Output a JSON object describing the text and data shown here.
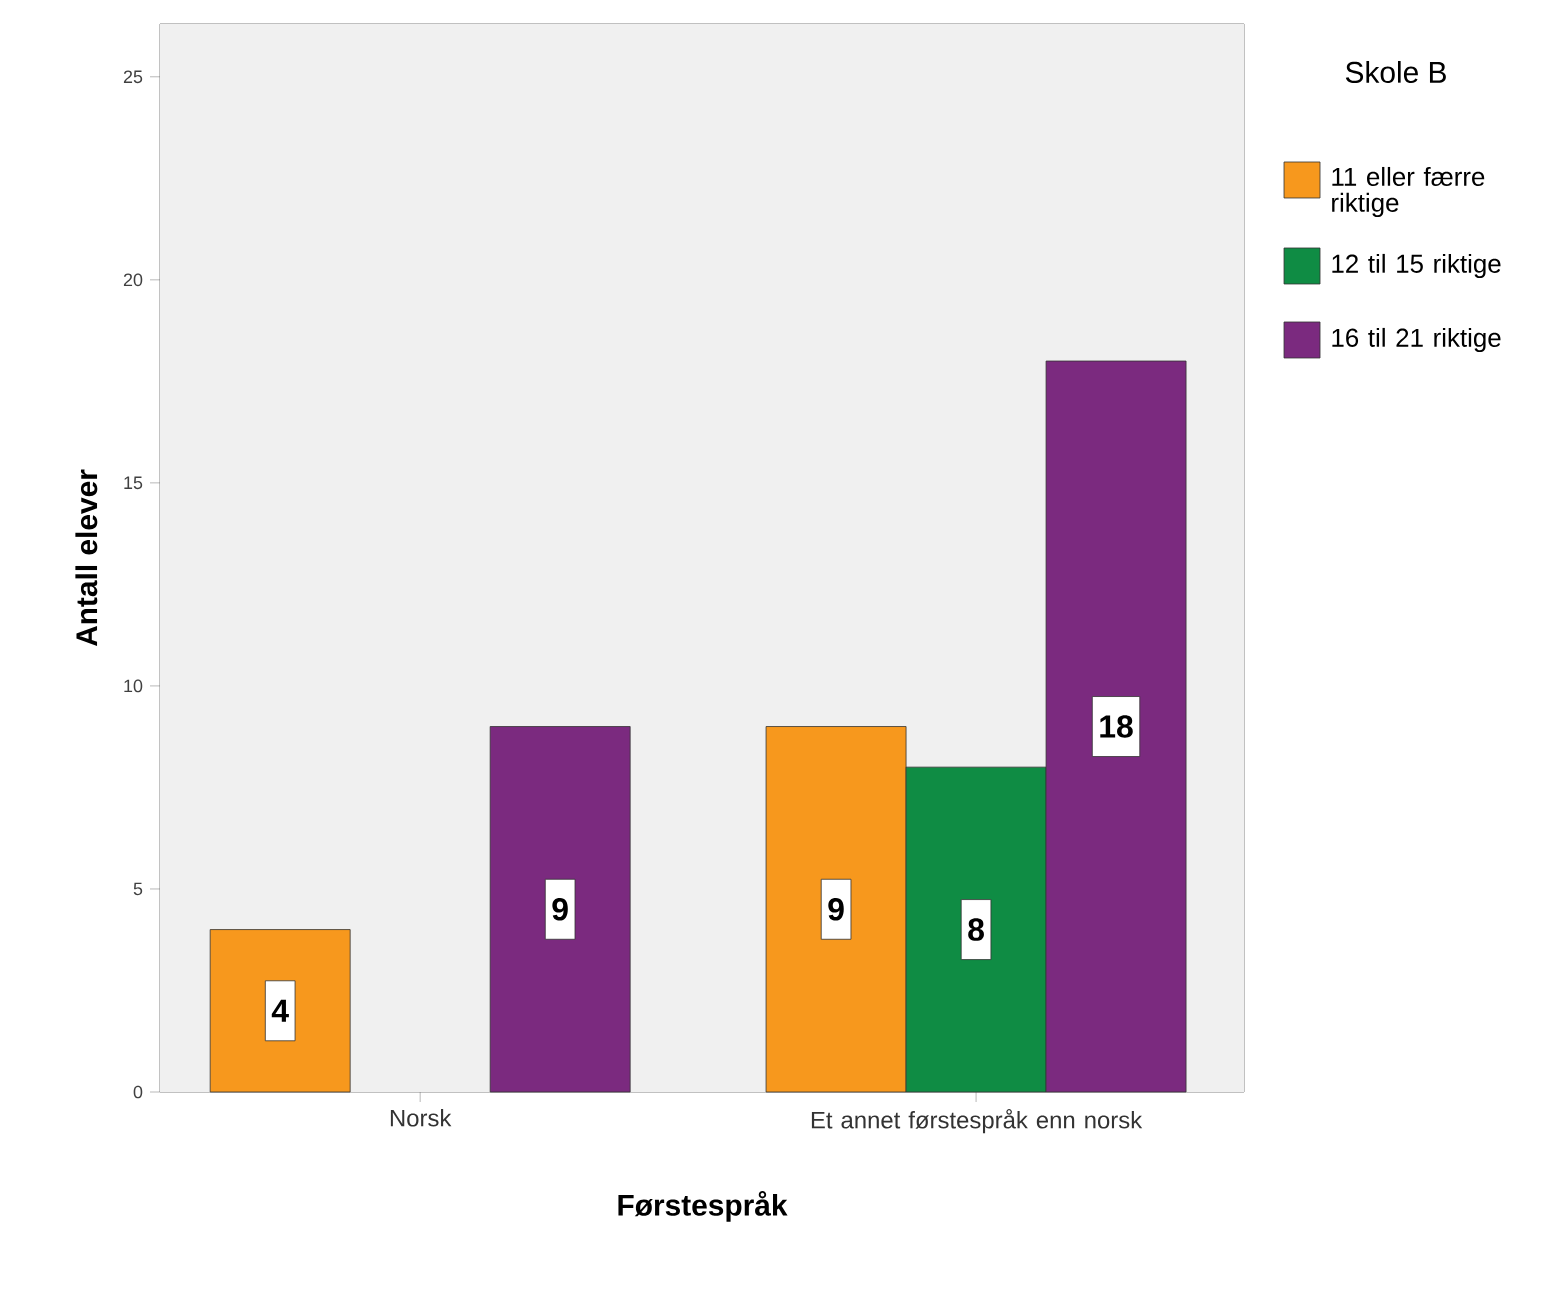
{
  "chart_data": {
    "type": "bar",
    "xlabel": "Førstespråk",
    "ylabel": "Antall elever",
    "legend_title": "Skole B",
    "categories": [
      "Norsk",
      "Et annet førstespråk enn norsk"
    ],
    "series": [
      {
        "name": "11 eller færre riktige",
        "color": "#f7981d",
        "values": [
          4,
          9
        ],
        "value_labels": [
          "4",
          "9"
        ]
      },
      {
        "name": "12 til 15 riktige",
        "color": "#0f8c44",
        "values": [
          null,
          8
        ],
        "value_labels": [
          null,
          "8"
        ]
      },
      {
        "name": "16 til 21 riktige",
        "color": "#7b2a7f",
        "values": [
          9,
          18
        ],
        "value_labels": [
          "9",
          "18"
        ]
      }
    ],
    "ylim": [
      0,
      26.3
    ],
    "yticks": [
      0,
      5,
      10,
      15,
      20,
      25
    ],
    "legend": "right"
  }
}
